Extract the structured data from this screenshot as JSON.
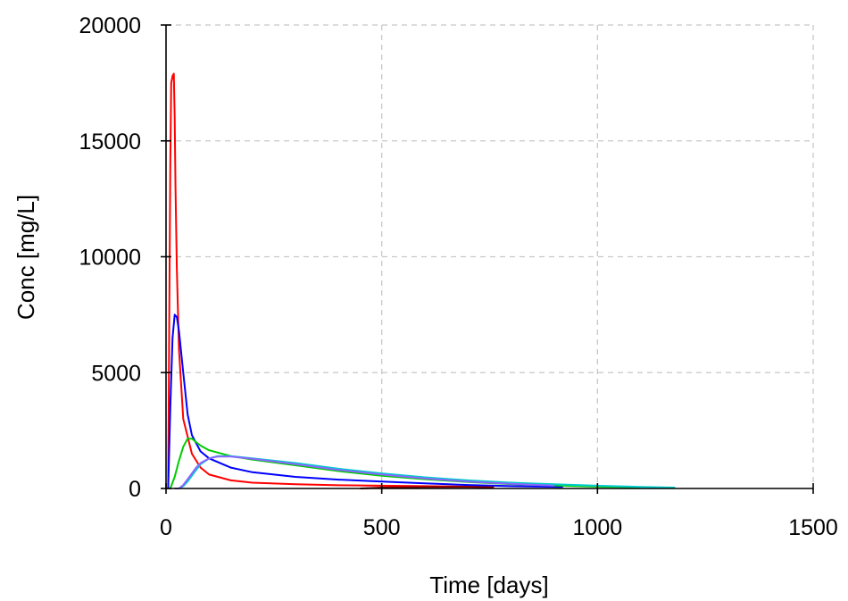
{
  "chart_data": {
    "type": "line",
    "title": "",
    "xlabel": "Time [days]",
    "ylabel": "Conc [mg/L]",
    "xlim": [
      0,
      1500
    ],
    "ylim": [
      0,
      20000
    ],
    "xticks": [
      0,
      500,
      1000,
      1500
    ],
    "yticks": [
      0,
      5000,
      10000,
      15000,
      20000
    ],
    "xtick_labels": [
      "0",
      "500",
      "1000",
      "1500"
    ],
    "ytick_labels": [
      "0",
      "5000",
      "10000",
      "15000",
      "20000"
    ],
    "grid": true,
    "legend": "none",
    "series": [
      {
        "color": "#ff0000",
        "x": [
          5,
          8,
          10,
          12,
          15,
          18,
          20,
          22,
          25,
          30,
          40,
          60,
          80,
          100,
          150,
          200,
          300,
          400,
          500,
          600,
          700,
          760
        ],
        "y": [
          0,
          9000,
          14000,
          17500,
          17800,
          17900,
          16000,
          13000,
          9500,
          6000,
          3000,
          1500,
          900,
          600,
          350,
          250,
          180,
          140,
          120,
          100,
          80,
          70
        ]
      },
      {
        "color": "#0000ff",
        "x": [
          5,
          10,
          15,
          20,
          25,
          30,
          40,
          50,
          60,
          80,
          100,
          150,
          200,
          300,
          400,
          500,
          600,
          700,
          800,
          920
        ],
        "y": [
          0,
          3500,
          6500,
          7500,
          7400,
          6800,
          5000,
          3200,
          2300,
          1600,
          1300,
          900,
          700,
          500,
          380,
          300,
          220,
          150,
          100,
          70
        ]
      },
      {
        "color": "#00cc00",
        "x": [
          10,
          20,
          30,
          40,
          50,
          60,
          70,
          80,
          100,
          150,
          200,
          300,
          400,
          500,
          600,
          700,
          800,
          900,
          1000,
          1100
        ],
        "y": [
          0,
          500,
          1200,
          1800,
          2150,
          2150,
          2000,
          1850,
          1650,
          1400,
          1250,
          1000,
          750,
          550,
          400,
          280,
          190,
          130,
          80,
          50
        ]
      },
      {
        "color": "#00cccc",
        "x": [
          20,
          30,
          40,
          50,
          60,
          70,
          80,
          100,
          120,
          150,
          200,
          300,
          400,
          500,
          600,
          700,
          800,
          900,
          1000,
          1100,
          1180
        ],
        "y": [
          0,
          0,
          100,
          300,
          550,
          800,
          1050,
          1300,
          1400,
          1400,
          1300,
          1100,
          850,
          650,
          480,
          350,
          250,
          180,
          120,
          70,
          40
        ]
      },
      {
        "color": "#8c64ff",
        "x": [
          20,
          30,
          40,
          50,
          60,
          70,
          80,
          100,
          120,
          150,
          200,
          300,
          400,
          500,
          600,
          700,
          800,
          900
        ],
        "y": [
          0,
          0,
          150,
          400,
          650,
          900,
          1100,
          1300,
          1380,
          1380,
          1280,
          1050,
          800,
          600,
          430,
          300,
          200,
          120
        ]
      },
      {
        "color": "#800000",
        "x": [
          450,
          500,
          600,
          700,
          760
        ],
        "y": [
          0,
          40,
          60,
          70,
          50
        ]
      }
    ]
  }
}
